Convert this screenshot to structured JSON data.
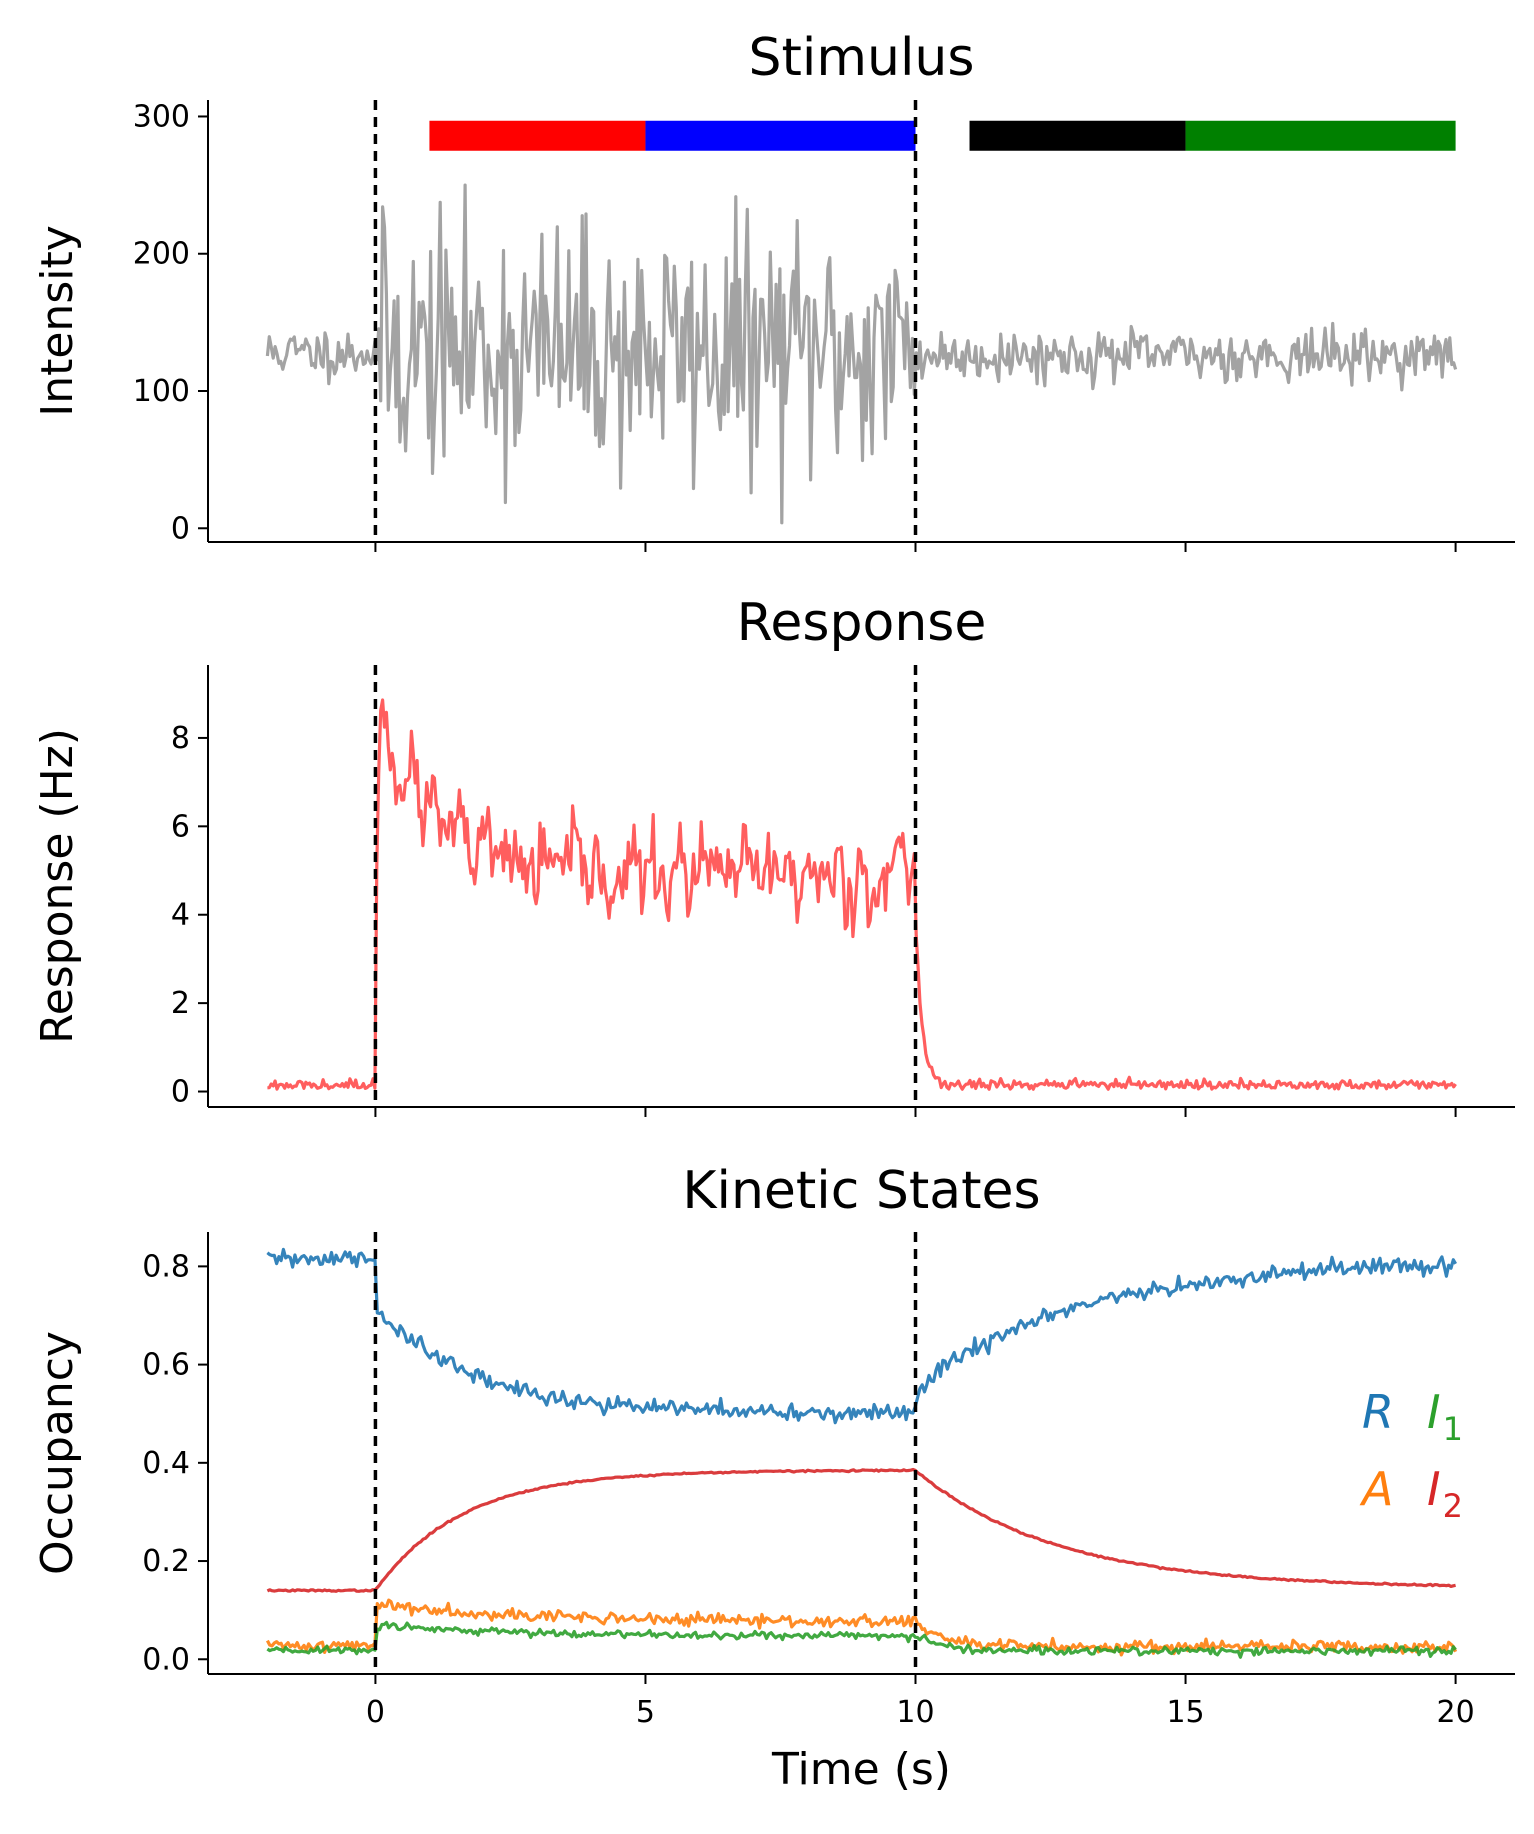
{
  "chart_data": [
    {
      "type": "line",
      "title": "Stimulus",
      "ylabel": "Intensity",
      "xlim": [
        -3.1,
        21.1
      ],
      "ylim": [
        -10,
        312
      ],
      "yticks": [
        0,
        100,
        200,
        300
      ],
      "vlines": [
        0,
        10
      ],
      "grid": false,
      "bars": [
        {
          "x0": 1,
          "x1": 5,
          "y": 286,
          "color": "#ff0000"
        },
        {
          "x0": 5,
          "x1": 10,
          "y": 286,
          "color": "#0000ff"
        },
        {
          "x0": 11,
          "x1": 15,
          "y": 286,
          "color": "#000000"
        },
        {
          "x0": 15,
          "x1": 20,
          "y": 286,
          "color": "#008000"
        }
      ],
      "series": [
        {
          "color": "#999999",
          "generator": {
            "seed": 11,
            "x_start": -2,
            "x_end": 20,
            "n": 620,
            "mode": "uniform",
            "segments": [
              {
                "x0": -2,
                "x1": 0,
                "mean": 128,
                "amp": 12
              },
              {
                "x0": 0,
                "x1": 10,
                "mean": 130,
                "amp": 60
              },
              {
                "x0": 10,
                "x1": 20,
                "mean": 126,
                "amp": 12
              }
            ]
          }
        }
      ]
    },
    {
      "type": "line",
      "title": "Response",
      "ylabel": "Response (Hz)",
      "xlim": [
        -3.1,
        21.1
      ],
      "ylim": [
        -0.35,
        9.65
      ],
      "yticks": [
        0,
        2,
        4,
        6,
        8
      ],
      "vlines": [
        0,
        10
      ],
      "grid": false,
      "series": [
        {
          "color": "#ff4c4c",
          "generator": {
            "seed": 23,
            "x_start": -2,
            "x_end": 20,
            "n": 620,
            "mode": "response",
            "baseline": 0.15,
            "base_noise": 0.06,
            "peak": 9.1,
            "plateau": 4.9,
            "tau": 0.9,
            "noise": 0.8,
            "on": 0,
            "off": 10,
            "off_value": 4.0,
            "off_tau": 0.12
          }
        }
      ]
    },
    {
      "type": "line",
      "title": "Kinetic States",
      "ylabel": "Occupancy",
      "xlabel": "Time (s)",
      "xlim": [
        -3.1,
        21.1
      ],
      "ylim": [
        -0.03,
        0.87
      ],
      "xticks": [
        0,
        5,
        10,
        15,
        20
      ],
      "yticks": [
        0.0,
        0.2,
        0.4,
        0.6,
        0.8
      ],
      "vlines": [
        0,
        10
      ],
      "grid": false,
      "legend": {
        "placement": "right",
        "entries": [
          {
            "main": "R",
            "sub": "",
            "color": "#1f77b4"
          },
          {
            "main": "I",
            "sub": "1",
            "color": "#2ca02c"
          },
          {
            "main": "A",
            "sub": "",
            "color": "#ff7f0e"
          },
          {
            "main": "I",
            "sub": "2",
            "color": "#d62728"
          }
        ]
      },
      "series": [
        {
          "color": "#1f77b4",
          "generator": {
            "seed": 31,
            "x_start": -2,
            "x_end": 20,
            "n": 520,
            "mode": "kinetic",
            "base": 0.815,
            "on_target": 0.5,
            "on_tau": 1.8,
            "on_jump": -0.1,
            "off_target": 0.815,
            "off_tau": 3.2,
            "off_jump": 0.06,
            "noise": 0.009,
            "on": 0,
            "off": 10
          }
        },
        {
          "color": "#d62728",
          "generator": {
            "seed": 37,
            "x_start": -2,
            "x_end": 20,
            "n": 520,
            "mode": "kinetic",
            "base": 0.14,
            "on_target": 0.385,
            "on_tau": 1.6,
            "on_jump": 0,
            "off_target": 0.145,
            "off_tau": 2.6,
            "off_jump": 0,
            "noise": 0.0008,
            "on": 0,
            "off": 10
          }
        },
        {
          "color": "#ff7f0e",
          "generator": {
            "seed": 41,
            "x_start": -2,
            "x_end": 20,
            "n": 520,
            "mode": "kinetic",
            "base": 0.028,
            "on_target": 0.075,
            "on_tau": 3.0,
            "on_jump": 0.085,
            "off_target": 0.026,
            "off_tau": 0.5,
            "off_jump": 0,
            "noise": 0.006,
            "on": 0,
            "off": 10
          }
        },
        {
          "color": "#2ca02c",
          "generator": {
            "seed": 43,
            "x_start": -2,
            "x_end": 20,
            "n": 520,
            "mode": "kinetic",
            "base": 0.018,
            "on_target": 0.047,
            "on_tau": 3.0,
            "on_jump": 0.05,
            "off_target": 0.017,
            "off_tau": 0.5,
            "off_jump": 0,
            "noise": 0.004,
            "on": 0,
            "off": 10
          }
        }
      ]
    }
  ]
}
